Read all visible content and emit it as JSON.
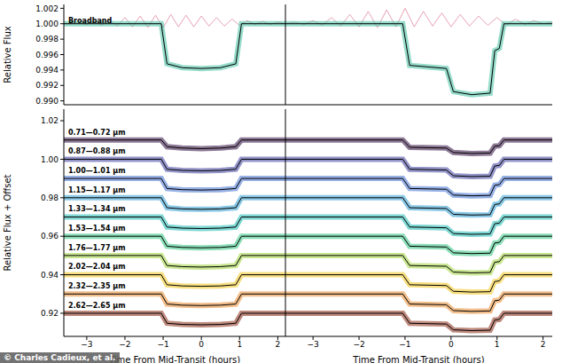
{
  "credit": "© Charles Cadieux, et al.",
  "chart_data": [
    {
      "type": "line",
      "y_label": "Relative Flux",
      "xlim": [
        -3.6,
        2.2
      ],
      "ylim": [
        0.9895,
        1.0025
      ],
      "tick_labels": "y",
      "xticks": [
        {
          "value": -3,
          "label": "−3"
        },
        {
          "value": -2,
          "label": "−2"
        },
        {
          "value": -1,
          "label": "−1"
        },
        0,
        1,
        2
      ],
      "yticks": [
        {
          "value": 0.99,
          "label": "0.990"
        },
        {
          "value": 0.992,
          "label": "0.992"
        },
        {
          "value": 0.994,
          "label": "0.994"
        },
        {
          "value": 0.996,
          "label": "0.996"
        },
        {
          "value": 0.998,
          "label": "0.998"
        },
        {
          "value": 1.0,
          "label": "1.000"
        },
        {
          "value": 1.002,
          "label": "1.002"
        }
      ],
      "x": [
        -3.6,
        -1.05,
        -0.9,
        -0.5,
        0,
        0.5,
        0.9,
        1.05,
        2.2
      ],
      "series": [
        {
          "color": "#e8a0b4",
          "x": [
            -3.6,
            -3.4,
            -3.2,
            -3.0,
            -2.8,
            -2.6,
            -2.4,
            -2.2,
            -2.0,
            -1.8,
            -1.6,
            -1.4,
            -1.2,
            -1.0,
            -0.8,
            -0.6,
            -0.4,
            -0.2,
            0.0,
            0.2,
            0.4,
            0.6,
            0.8,
            1.0,
            1.2,
            1.4,
            1.6,
            1.8,
            2.0,
            2.2
          ],
          "values": [
            1.0,
            1.0,
            1.0001,
            0.9999,
            1.0003,
            0.9998,
            1.0005,
            0.9997,
            1.0008,
            0.9996,
            1.001,
            0.9995,
            1.0011,
            0.9995,
            1.0012,
            0.9996,
            1.0011,
            0.9996,
            1.001,
            0.9997,
            1.0008,
            0.9997,
            1.0006,
            0.9998,
            1.0004,
            0.9999,
            1.0003,
            0.9999,
            1.0002,
            1.0
          ]
        },
        {
          "name": "Broadband",
          "color": "#3fbfa0",
          "marker": "o",
          "values": [
            1.0,
            1.0,
            0.9948,
            0.9943,
            0.9942,
            0.9943,
            0.9948,
            1.0,
            1.0
          ]
        }
      ]
    },
    {
      "type": "line",
      "y_label": "Relative Flux + Offset",
      "x_label": "Time From Mid-Transit (hours)",
      "xlim": [
        -3.6,
        2.2
      ],
      "ylim": [
        0.908,
        1.026
      ],
      "tick_labels": true,
      "xticks": [
        {
          "value": -3,
          "label": "−3"
        },
        {
          "value": -2,
          "label": "−2"
        },
        {
          "value": -1,
          "label": "−1"
        },
        0,
        1,
        2
      ],
      "yticks": [
        0.92,
        0.94,
        0.96,
        0.98,
        {
          "value": 1.0,
          "label": "1.00"
        },
        1.02
      ],
      "x": [
        -3.6,
        -1.05,
        -0.9,
        -0.5,
        0,
        0.5,
        0.9,
        1.05,
        2.2
      ],
      "series": [
        {
          "name": "0.71—0.72 μm",
          "color": "#2d0a3e",
          "marker": "o",
          "values": [
            1.01,
            1.01,
            1.0065,
            1.0058,
            1.0055,
            1.0058,
            1.0065,
            1.01,
            1.01
          ]
        },
        {
          "name": "0.87—0.88 μm",
          "color": "#3a3d9a",
          "marker": "o",
          "values": [
            1.0,
            1.0,
            0.9948,
            0.9942,
            0.994,
            0.9942,
            0.9948,
            1.0,
            1.0
          ]
        },
        {
          "name": "1.00—1.01 μm",
          "color": "#3f6fd0",
          "marker": "o",
          "values": [
            0.99,
            0.99,
            0.9848,
            0.9842,
            0.984,
            0.9842,
            0.9848,
            0.99,
            0.99
          ]
        },
        {
          "name": "1.15—1.17 μm",
          "color": "#2a9bd0",
          "marker": "o",
          "values": [
            0.98,
            0.98,
            0.9748,
            0.9742,
            0.974,
            0.9742,
            0.9748,
            0.98,
            0.98
          ]
        },
        {
          "name": "1.33—1.34 μm",
          "color": "#17b8b0",
          "marker": "o",
          "values": [
            0.97,
            0.97,
            0.9648,
            0.9642,
            0.964,
            0.9642,
            0.9648,
            0.97,
            0.97
          ]
        },
        {
          "name": "1.53—1.54 μm",
          "color": "#2ec27e",
          "marker": "o",
          "values": [
            0.96,
            0.96,
            0.9548,
            0.9542,
            0.954,
            0.9542,
            0.9548,
            0.96,
            0.96
          ]
        },
        {
          "name": "1.76—1.77 μm",
          "color": "#9ed43a",
          "marker": "o",
          "values": [
            0.95,
            0.95,
            0.9448,
            0.9442,
            0.944,
            0.9442,
            0.9448,
            0.95,
            0.95
          ]
        },
        {
          "name": "2.02—2.04 μm",
          "color": "#f0c419",
          "marker": "o",
          "values": [
            0.94,
            0.94,
            0.9348,
            0.9342,
            0.934,
            0.9342,
            0.9348,
            0.94,
            0.94
          ]
        },
        {
          "name": "2.32—2.35 μm",
          "color": "#e8892c",
          "marker": "o",
          "values": [
            0.93,
            0.93,
            0.9248,
            0.9242,
            0.924,
            0.9242,
            0.9248,
            0.93,
            0.93
          ]
        },
        {
          "name": "2.62—2.65 μm",
          "color": "#8a2a14",
          "marker": "o",
          "values": [
            0.92,
            0.92,
            0.9148,
            0.9142,
            0.914,
            0.9142,
            0.9148,
            0.92,
            0.92
          ]
        }
      ]
    },
    {
      "type": "line",
      "xlim": [
        -3.6,
        2.2
      ],
      "ylim": [
        0.9895,
        1.0025
      ],
      "tick_labels": false,
      "xticks": [
        {
          "value": -3,
          "label": "−3"
        },
        {
          "value": -2,
          "label": "−2"
        },
        {
          "value": -1,
          "label": "−1"
        },
        0,
        1,
        2
      ],
      "yticks": [
        {
          "value": 0.99,
          "label": "0.990"
        },
        {
          "value": 0.992,
          "label": "0.992"
        },
        {
          "value": 0.994,
          "label": "0.994"
        },
        {
          "value": 0.996,
          "label": "0.996"
        },
        {
          "value": 0.998,
          "label": "0.998"
        },
        {
          "value": 1.0,
          "label": "1.000"
        },
        {
          "value": 1.002,
          "label": "1.002"
        }
      ],
      "x": [
        -3.6,
        -1.05,
        -0.9,
        -0.1,
        0.05,
        0.45,
        0.85,
        0.95,
        1.05,
        1.15,
        2.2
      ],
      "series": [
        {
          "color": "#e8a0b4",
          "x": [
            -3.6,
            -3.4,
            -3.2,
            -3.0,
            -2.8,
            -2.6,
            -2.4,
            -2.2,
            -2.0,
            -1.8,
            -1.6,
            -1.4,
            -1.2,
            -1.0,
            -0.8,
            -0.6,
            -0.4,
            -0.2,
            0.0,
            0.2,
            0.4,
            0.6,
            0.8,
            1.0,
            1.2,
            1.4,
            1.6,
            1.8,
            2.0,
            2.2
          ],
          "values": [
            1.0,
            1.0002,
            0.9999,
            1.0004,
            0.9998,
            1.0008,
            0.9997,
            1.0012,
            0.9996,
            1.0016,
            0.9995,
            1.0018,
            0.9996,
            1.002,
            0.9996,
            1.0016,
            0.9997,
            1.0014,
            0.9996,
            1.0012,
            0.9997,
            1.001,
            0.9998,
            1.0008,
            0.9998,
            1.0006,
            0.9999,
            1.0004,
            1.0,
            1.0002
          ]
        },
        {
          "color": "#3fbfa0",
          "marker": "o",
          "values": [
            1.0,
            1.0,
            0.9946,
            0.9942,
            0.9912,
            0.9908,
            0.991,
            0.9965,
            0.9968,
            1.0,
            1.0
          ]
        }
      ]
    },
    {
      "type": "line",
      "x_label": "Time From Mid-Transit (hours)",
      "xlim": [
        -3.6,
        2.2
      ],
      "ylim": [
        0.908,
        1.026
      ],
      "tick_labels": "x",
      "xticks": [
        {
          "value": -3,
          "label": "−3"
        },
        {
          "value": -2,
          "label": "−2"
        },
        {
          "value": -1,
          "label": "−1"
        },
        0,
        1,
        2
      ],
      "yticks": [
        0.92,
        0.94,
        0.96,
        0.98,
        {
          "value": 1.0,
          "label": "1.00"
        },
        1.02
      ],
      "x": [
        -3.6,
        -1.05,
        -0.9,
        -0.1,
        0.05,
        0.45,
        0.85,
        0.95,
        1.05,
        1.15,
        2.2
      ],
      "series": [
        {
          "color": "#2d0a3e",
          "marker": "o",
          "values": [
            1.01,
            1.01,
            1.0062,
            1.0058,
            1.0035,
            1.003,
            1.0032,
            1.0068,
            1.007,
            1.01,
            1.01
          ]
        },
        {
          "color": "#3a3d9a",
          "marker": "o",
          "values": [
            1.0,
            1.0,
            0.9948,
            0.9944,
            0.9914,
            0.991,
            0.9912,
            0.9965,
            0.9968,
            1.0,
            1.0
          ]
        },
        {
          "color": "#3f6fd0",
          "marker": "o",
          "values": [
            0.99,
            0.99,
            0.9848,
            0.9844,
            0.9814,
            0.981,
            0.9812,
            0.9865,
            0.9868,
            0.99,
            0.99
          ]
        },
        {
          "color": "#2a9bd0",
          "marker": "o",
          "values": [
            0.98,
            0.98,
            0.9748,
            0.9744,
            0.9714,
            0.971,
            0.9712,
            0.9765,
            0.9768,
            0.98,
            0.98
          ]
        },
        {
          "color": "#17b8b0",
          "marker": "o",
          "values": [
            0.97,
            0.97,
            0.9648,
            0.9644,
            0.9614,
            0.961,
            0.9612,
            0.9665,
            0.9668,
            0.97,
            0.97
          ]
        },
        {
          "color": "#2ec27e",
          "marker": "o",
          "values": [
            0.96,
            0.96,
            0.9548,
            0.9544,
            0.9514,
            0.951,
            0.9512,
            0.9565,
            0.9568,
            0.96,
            0.96
          ]
        },
        {
          "color": "#9ed43a",
          "marker": "o",
          "values": [
            0.95,
            0.95,
            0.9448,
            0.9444,
            0.9414,
            0.941,
            0.9412,
            0.9465,
            0.9468,
            0.95,
            0.95
          ]
        },
        {
          "color": "#f0c419",
          "marker": "o",
          "values": [
            0.94,
            0.94,
            0.9348,
            0.9344,
            0.9314,
            0.931,
            0.9312,
            0.9365,
            0.9368,
            0.94,
            0.94
          ]
        },
        {
          "color": "#e8892c",
          "marker": "o",
          "values": [
            0.93,
            0.93,
            0.9248,
            0.9244,
            0.9214,
            0.921,
            0.9212,
            0.9265,
            0.9268,
            0.93,
            0.93
          ]
        },
        {
          "color": "#8a2a14",
          "marker": "o",
          "values": [
            0.92,
            0.92,
            0.9148,
            0.9144,
            0.9114,
            0.911,
            0.9112,
            0.9165,
            0.9168,
            0.92,
            0.92
          ]
        }
      ]
    }
  ]
}
